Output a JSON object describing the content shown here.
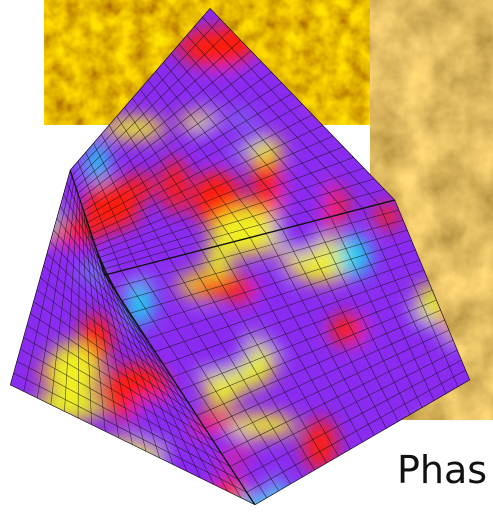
{
  "caption": {
    "text": "Phas"
  }
}
